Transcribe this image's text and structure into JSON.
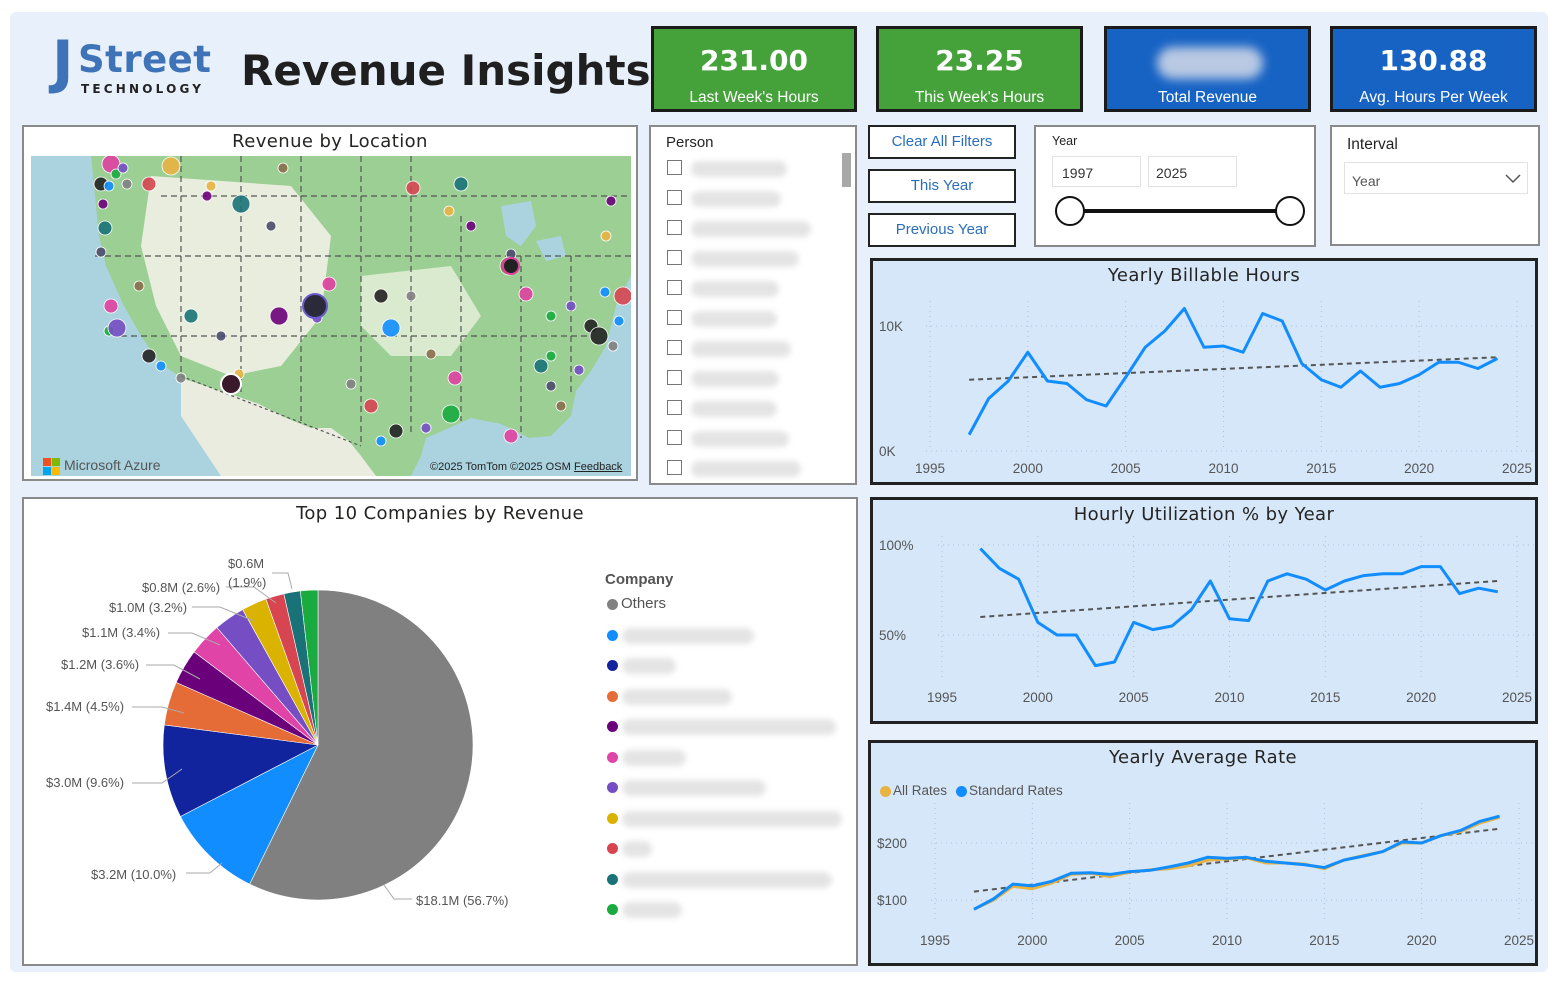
{
  "header": {
    "logo_j": "J",
    "logo_street": "Street",
    "logo_tech": "TECHNOLOGY",
    "title": "Revenue Insights"
  },
  "kpis": [
    {
      "value": "231.00",
      "label": "Last Week's Hours",
      "color": "#45a13a"
    },
    {
      "value": "23.25",
      "label": "This Week's Hours",
      "color": "#45a13a"
    },
    {
      "value": "",
      "label": "Total Revenue",
      "color": "#1763c4"
    },
    {
      "value": "130.88",
      "label": "Avg. Hours Per Week",
      "color": "#1763c4"
    }
  ],
  "map": {
    "title": "Revenue by Location",
    "brand": "Microsoft Azure",
    "credits": "©2025 TomTom  ©2025 OSM",
    "feedback": "Feedback"
  },
  "person": {
    "title": "Person",
    "item_count": 11
  },
  "filters": {
    "clear": "Clear All Filters",
    "this_year": "This Year",
    "previous_year": "Previous Year"
  },
  "year_slicer": {
    "title": "Year",
    "from": "1997",
    "to": "2025"
  },
  "interval": {
    "title": "Interval",
    "selected": "Year"
  },
  "pie": {
    "title": "Top 10 Companies by Revenue",
    "legend_title": "Company",
    "legend_first": "Others",
    "labels": [
      "$0.6M",
      "(1.9%)",
      "$0.8M (2.6%)",
      "$1.0M (3.2%)",
      "$1.1M (3.4%)",
      "$1.2M (3.6%)",
      "$1.4M (4.5%)",
      "$3.0M (9.6%)",
      "$3.2M (10.0%)",
      "$18.1M (56.7%)"
    ]
  },
  "chart_data": [
    {
      "type": "pie",
      "title": "Top 10 Companies by Revenue",
      "slices": [
        {
          "name": "Others",
          "value": 18.1,
          "percent": 56.7,
          "color": "#808080"
        },
        {
          "name": "",
          "value": 3.2,
          "percent": 10.0,
          "color": "#118dff"
        },
        {
          "name": "",
          "value": 3.0,
          "percent": 9.6,
          "color": "#12239e"
        },
        {
          "name": "",
          "value": 1.4,
          "percent": 4.5,
          "color": "#e66c37"
        },
        {
          "name": "",
          "value": 1.2,
          "percent": 3.6,
          "color": "#6b007b"
        },
        {
          "name": "",
          "value": 1.1,
          "percent": 3.4,
          "color": "#e044a7"
        },
        {
          "name": "",
          "value": 1.0,
          "percent": 3.2,
          "color": "#744ec2"
        },
        {
          "name": "",
          "value": 0.8,
          "percent": 2.6,
          "color": "#d9b300"
        },
        {
          "name": "",
          "value": 0.6,
          "percent": 1.9,
          "color": "#d64550"
        },
        {
          "name": "",
          "value": 0.6,
          "percent": 1.7,
          "color": "#197278"
        },
        {
          "name": "",
          "value": 0.6,
          "percent": 1.8,
          "color": "#1aab40"
        }
      ],
      "legend_placement": "right"
    },
    {
      "type": "line",
      "title": "Yearly Billable Hours",
      "x": [
        1997,
        1998,
        1999,
        2000,
        2001,
        2002,
        2003,
        2004,
        2005,
        2006,
        2007,
        2008,
        2009,
        2010,
        2011,
        2012,
        2013,
        2014,
        2015,
        2016,
        2017,
        2018,
        2019,
        2020,
        2021,
        2022,
        2023,
        2024
      ],
      "series": [
        {
          "values": [
            1300,
            4200,
            5600,
            7900,
            5600,
            5400,
            4100,
            3600,
            5900,
            8300,
            9600,
            11400,
            8300,
            8400,
            7900,
            11000,
            10400,
            7000,
            5700,
            5100,
            6400,
            5100,
            5400,
            6100,
            7100,
            7100,
            6600,
            7400
          ],
          "color": "#118dff"
        }
      ],
      "trend": {
        "from": [
          1997,
          5700
        ],
        "to": [
          2024,
          7500
        ]
      },
      "yticks": [
        "0K",
        "10K"
      ],
      "xticks": [
        "1995",
        "2000",
        "2005",
        "2010",
        "2015",
        "2020",
        "2025"
      ],
      "xlim": [
        1995,
        2025
      ],
      "ylim": [
        0,
        12000
      ]
    },
    {
      "type": "line",
      "title": "Hourly Utilization % by Year",
      "x": [
        1997,
        1998,
        1999,
        2000,
        2001,
        2002,
        2003,
        2004,
        2005,
        2006,
        2007,
        2008,
        2009,
        2010,
        2011,
        2012,
        2013,
        2014,
        2015,
        2016,
        2017,
        2018,
        2019,
        2020,
        2021,
        2022,
        2023,
        2024
      ],
      "series": [
        {
          "values": [
            98,
            87,
            81,
            57,
            50,
            50,
            33,
            35,
            57,
            53,
            55,
            64,
            80,
            59,
            58,
            80,
            84,
            81,
            75,
            80,
            83,
            84,
            84,
            88,
            88,
            73,
            76,
            74
          ],
          "color": "#118dff"
        }
      ],
      "trend": {
        "from": [
          1997,
          60
        ],
        "to": [
          2024,
          80
        ]
      },
      "yticks": [
        "50%",
        "100%"
      ],
      "xticks": [
        "1995",
        "2000",
        "2005",
        "2010",
        "2015",
        "2020",
        "2025"
      ],
      "xlim": [
        1995,
        2025
      ],
      "ylim": [
        25,
        105
      ]
    },
    {
      "type": "line",
      "title": "Yearly Average Rate",
      "x": [
        1997,
        1998,
        1999,
        2000,
        2001,
        2002,
        2003,
        2004,
        2005,
        2006,
        2007,
        2008,
        2009,
        2010,
        2011,
        2012,
        2013,
        2014,
        2015,
        2016,
        2017,
        2018,
        2019,
        2020,
        2021,
        2022,
        2023,
        2024
      ],
      "series": [
        {
          "name": "All Rates",
          "values": [
            84,
            100,
            124,
            120,
            130,
            145,
            147,
            141,
            149,
            153,
            155,
            160,
            170,
            172,
            174,
            165,
            165,
            163,
            155,
            170,
            178,
            185,
            200,
            200,
            213,
            220,
            235,
            245
          ],
          "color": "#e8b341"
        },
        {
          "name": "Standard Rates",
          "values": [
            84,
            102,
            128,
            125,
            133,
            147,
            148,
            145,
            150,
            152,
            158,
            165,
            175,
            173,
            175,
            168,
            165,
            162,
            157,
            170,
            177,
            185,
            202,
            200,
            213,
            222,
            238,
            247
          ],
          "color": "#118dff"
        }
      ],
      "trend": {
        "from": [
          1997,
          115
        ],
        "to": [
          2024,
          225
        ]
      },
      "yticks": [
        "$100",
        "$200"
      ],
      "xticks": [
        "1995",
        "2000",
        "2005",
        "2010",
        "2015",
        "2020",
        "2025"
      ],
      "xlim": [
        1995,
        2025
      ],
      "ylim": [
        60,
        270
      ],
      "legend_placement": "top-left"
    }
  ]
}
